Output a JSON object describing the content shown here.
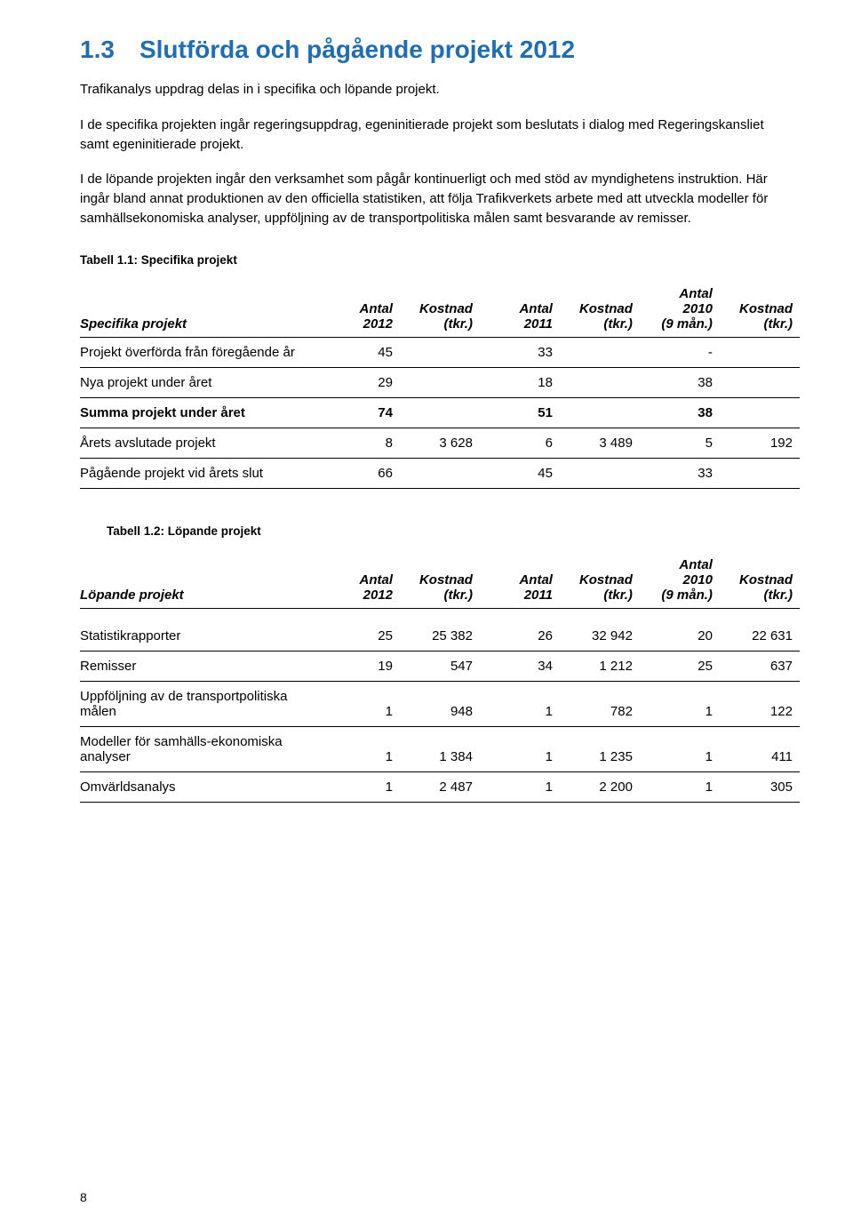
{
  "heading": {
    "number": "1.3",
    "title": "Slutförda och pågående projekt 2012"
  },
  "paragraphs": [
    "Trafikanalys uppdrag delas in i specifika och löpande projekt.",
    "I de specifika projekten ingår regeringsuppdrag, egeninitierade projekt som beslutats i dialog med Regeringskansliet samt egeninitierade projekt.",
    "I de löpande projekten ingår den verksamhet som pågår kontinuerligt och med stöd av myndighetens instruktion. Här ingår bland annat produktionen av den officiella statistiken, att följa Trafikverkets arbete med att utveckla modeller för samhällsekonomiska analyser, uppföljning av de transportpolitiska målen samt besvarande av remisser."
  ],
  "table1": {
    "caption": "Tabell 1.1: Specifika projekt",
    "headers": {
      "rowlabel": "Specifika projekt",
      "c1": "Antal 2012",
      "c2": "Kostnad (tkr.)",
      "c3": "Antal 2011",
      "c4": "Kostnad (tkr.)",
      "c5": "Antal 2010 (9 mån.)",
      "c6": "Kostnad (tkr.)"
    },
    "rows": [
      {
        "label": "Projekt överförda från föregående år",
        "c1": "45",
        "c2": "",
        "c3": "33",
        "c4": "",
        "c5": "-",
        "c6": "",
        "bold": false
      },
      {
        "label": "Nya projekt under året",
        "c1": "29",
        "c2": "",
        "c3": "18",
        "c4": "",
        "c5": "38",
        "c6": "",
        "bold": false
      },
      {
        "label": "Summa projekt under året",
        "c1": "74",
        "c2": "",
        "c3": "51",
        "c4": "",
        "c5": "38",
        "c6": "",
        "bold": true
      },
      {
        "label": "Årets avslutade projekt",
        "c1": "8",
        "c2": "3 628",
        "c3": "6",
        "c4": "3 489",
        "c5": "5",
        "c6": "192",
        "bold": false
      },
      {
        "label": "Pågående projekt vid årets slut",
        "c1": "66",
        "c2": "",
        "c3": "45",
        "c4": "",
        "c5": "33",
        "c6": "",
        "bold": false
      }
    ]
  },
  "table2": {
    "caption": "Tabell 1.2: Löpande projekt",
    "headers": {
      "rowlabel": "Löpande projekt",
      "c1": "Antal 2012",
      "c2": "Kostnad (tkr.)",
      "c3": "Antal 2011",
      "c4": "Kostnad (tkr.)",
      "c5": "Antal 2010 (9 mån.)",
      "c6": "Kostnad (tkr.)"
    },
    "rows": [
      {
        "label": "Statistikrapporter",
        "c1": "25",
        "c2": "25 382",
        "c3": "26",
        "c4": "32 942",
        "c5": "20",
        "c6": "22 631",
        "bold": false
      },
      {
        "label": "Remisser",
        "c1": "19",
        "c2": "547",
        "c3": "34",
        "c4": "1 212",
        "c5": "25",
        "c6": "637",
        "bold": false
      },
      {
        "label": "Uppföljning av de transportpolitiska målen",
        "c1": "1",
        "c2": "948",
        "c3": "1",
        "c4": "782",
        "c5": "1",
        "c6": "122",
        "bold": false
      },
      {
        "label": "Modeller för samhälls-ekonomiska analyser",
        "c1": "1",
        "c2": "1 384",
        "c3": "1",
        "c4": "1 235",
        "c5": "1",
        "c6": "411",
        "bold": false
      },
      {
        "label": "Omvärldsanalys",
        "c1": "1",
        "c2": "2 487",
        "c3": "1",
        "c4": "2 200",
        "c5": "1",
        "c6": "305",
        "bold": false
      }
    ]
  },
  "pageNumber": "8"
}
